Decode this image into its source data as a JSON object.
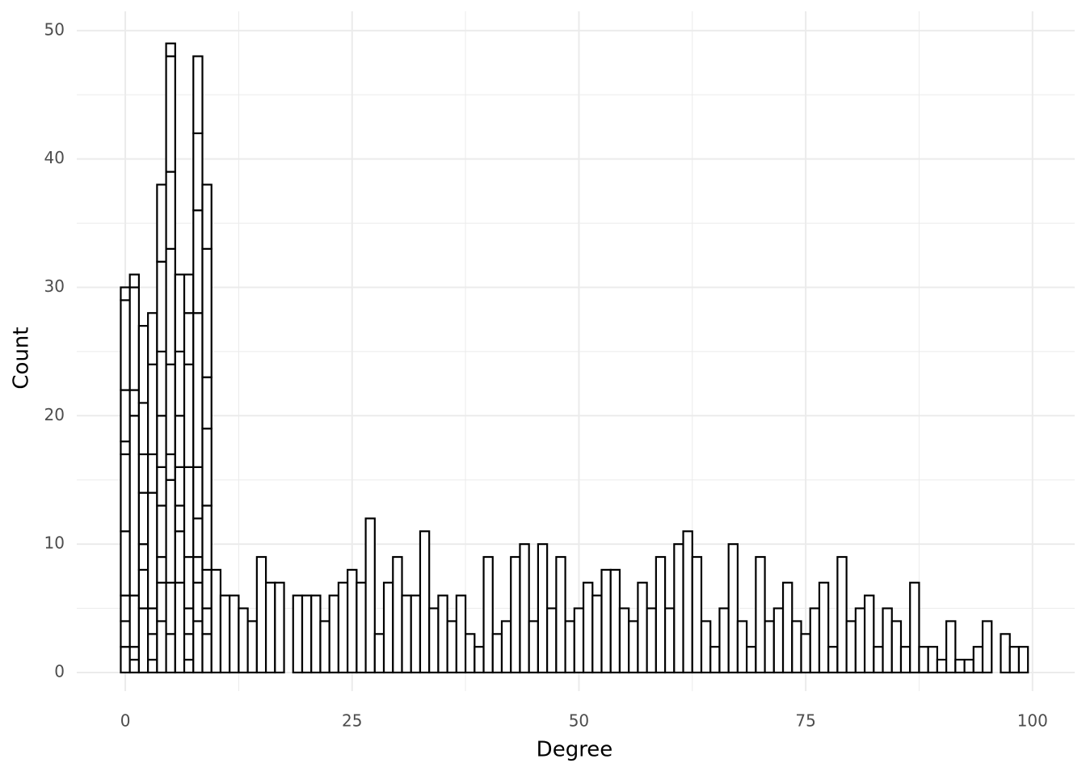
{
  "chart_data": {
    "type": "histogram",
    "x_label": "Degree",
    "y_label": "Count",
    "bins": [
      -0.5,
      0.5,
      1.5,
      2.5,
      3.5,
      4.5,
      5.5,
      6.5,
      7.5,
      8.5,
      9.5,
      10.5,
      11.5,
      12.5,
      13.5,
      14.5,
      15.5,
      16.5,
      17.5,
      18.5,
      19.5,
      20.5,
      21.5,
      22.5,
      23.5,
      24.5,
      25.5,
      26.5,
      27.5,
      28.5,
      29.5,
      30.5,
      31.5,
      32.5,
      33.5,
      34.5,
      35.5,
      36.5,
      37.5,
      38.5,
      39.5,
      40.5,
      41.5,
      42.5,
      43.5,
      44.5,
      45.5,
      46.5,
      47.5,
      48.5,
      49.5,
      50.5,
      51.5,
      52.5,
      53.5,
      54.5,
      55.5,
      56.5,
      57.5,
      58.5,
      59.5,
      60.5,
      61.5,
      62.5,
      63.5,
      64.5,
      65.5,
      66.5,
      67.5,
      68.5,
      69.5,
      70.5,
      71.5,
      72.5,
      73.5,
      74.5,
      75.5,
      76.5,
      77.5,
      78.5,
      79.5,
      80.5,
      81.5,
      82.5,
      83.5,
      84.5,
      85.5,
      86.5,
      87.5,
      88.5,
      89.5,
      90.5,
      91.5,
      92.5,
      93.5,
      94.5,
      95.5,
      96.5,
      97.5,
      98.5,
      99.5
    ],
    "values": [
      [
        2,
        2,
        2,
        5,
        6,
        1,
        4,
        7,
        1
      ],
      [
        1,
        1,
        4,
        14,
        2,
        8,
        1
      ],
      [
        5,
        3,
        2,
        4,
        3,
        4,
        6
      ],
      [
        1,
        2,
        2,
        9,
        3,
        7,
        4
      ],
      [
        4,
        3,
        2,
        4,
        3,
        4,
        5,
        7,
        6
      ],
      [
        3,
        4,
        8,
        2,
        7,
        9,
        6,
        9,
        1
      ],
      [
        7,
        4,
        2,
        3,
        4,
        5,
        6
      ],
      [
        1,
        2,
        2,
        4,
        7,
        8,
        4,
        3
      ],
      [
        4,
        3,
        2,
        3,
        4,
        12,
        8,
        6,
        6
      ],
      [
        3,
        2,
        3,
        5,
        6,
        4,
        10,
        5
      ],
      [
        8
      ],
      [
        6
      ],
      [
        6
      ],
      [
        5
      ],
      [
        4
      ],
      [
        9
      ],
      [
        7
      ],
      [
        7
      ],
      [
        0
      ],
      [
        6
      ],
      [
        6
      ],
      [
        6
      ],
      [
        4
      ],
      [
        6
      ],
      [
        7
      ],
      [
        8
      ],
      [
        7
      ],
      [
        12
      ],
      [
        3
      ],
      [
        7
      ],
      [
        9
      ],
      [
        6
      ],
      [
        6
      ],
      [
        11
      ],
      [
        5
      ],
      [
        6
      ],
      [
        4
      ],
      [
        6
      ],
      [
        3
      ],
      [
        2
      ],
      [
        9
      ],
      [
        3
      ],
      [
        4
      ],
      [
        9
      ],
      [
        10
      ],
      [
        4
      ],
      [
        10
      ],
      [
        5
      ],
      [
        9
      ],
      [
        4
      ],
      [
        5
      ],
      [
        7
      ],
      [
        6
      ],
      [
        8
      ],
      [
        8
      ],
      [
        5
      ],
      [
        4
      ],
      [
        7
      ],
      [
        5
      ],
      [
        9
      ],
      [
        5
      ],
      [
        10
      ],
      [
        11
      ],
      [
        9
      ],
      [
        4
      ],
      [
        2
      ],
      [
        5
      ],
      [
        10
      ],
      [
        4
      ],
      [
        2
      ],
      [
        9
      ],
      [
        4
      ],
      [
        5
      ],
      [
        7
      ],
      [
        4
      ],
      [
        3
      ],
      [
        5
      ],
      [
        7
      ],
      [
        2
      ],
      [
        9
      ],
      [
        4
      ],
      [
        5
      ],
      [
        6
      ],
      [
        2
      ],
      [
        5
      ],
      [
        4
      ],
      [
        2
      ],
      [
        7
      ],
      [
        2
      ],
      [
        2
      ],
      [
        1
      ],
      [
        4
      ],
      [
        1
      ],
      [
        1
      ],
      [
        2
      ],
      [
        4
      ],
      [
        0
      ],
      [
        3
      ],
      [
        2
      ],
      [
        2
      ]
    ],
    "color": "#ffffff",
    "edge_color": "#000000",
    "xlim": [
      -5.35,
      104.65
    ],
    "xticks": [
      0,
      25,
      50,
      75,
      100
    ],
    "xminorticks": [
      12.5,
      37.5,
      62.5,
      87.5
    ],
    "ylim": [
      -1.45,
      51.5
    ],
    "yticks": [
      0,
      10,
      20,
      30,
      40,
      50
    ],
    "yminorticks": [
      5,
      15,
      25,
      35,
      45
    ],
    "grid": true
  }
}
